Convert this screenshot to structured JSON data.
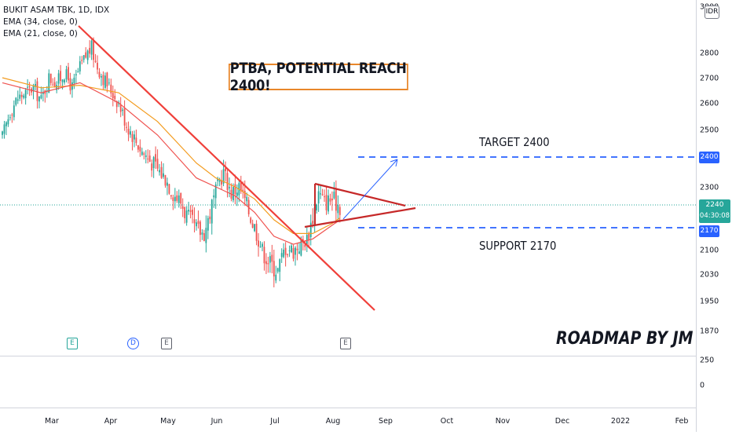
{
  "legend": {
    "symbol": "BUKIT ASAM TBK, 1D, IDX",
    "ema1": "EMA (34, close, 0)",
    "ema2": "EMA (21, close, 0)"
  },
  "annotations": {
    "headline": "PTBA, POTENTIAL REACH 2400!",
    "target_label": "TARGET 2400",
    "support_label": "SUPPORT 2170",
    "signature": "ROADMAP BY JM"
  },
  "currency_badge": "IDR",
  "price_tags": {
    "target": "2400",
    "support": "2170",
    "last_price": "2240",
    "countdown": "04:30:08"
  },
  "event_markers": [
    "E",
    "D",
    "E",
    "E"
  ],
  "colors": {
    "up": "#26a69a",
    "down": "#ef5350",
    "trend_line": "#f0403a",
    "ema34": "#f39c1f",
    "ema21": "#ef5350",
    "level_line": "#2962ff",
    "arrow": "#2962ff",
    "headline_border": "#e8862a"
  },
  "chart_data": {
    "type": "candlestick",
    "y_axis_ticks": [
      "3000",
      "2800",
      "2700",
      "2600",
      "2500",
      "2300",
      "2100",
      "2030",
      "1950",
      "1870"
    ],
    "lower_pane_ticks": [
      "250",
      "0"
    ],
    "x_axis_ticks": [
      "Mar",
      "Apr",
      "May",
      "Jun",
      "Jul",
      "Aug",
      "Sep",
      "Oct",
      "Nov",
      "Dec",
      "2022",
      "Feb"
    ],
    "ylim": [
      1920,
      3000
    ],
    "levels": {
      "target": 2400,
      "support": 2170,
      "last": 2240
    },
    "close_anchors": [
      [
        0,
        2470
      ],
      [
        4,
        2570
      ],
      [
        8,
        2620
      ],
      [
        12,
        2640
      ],
      [
        16,
        2660
      ],
      [
        20,
        2610
      ],
      [
        24,
        2700
      ],
      [
        28,
        2680
      ],
      [
        32,
        2720
      ],
      [
        36,
        2660
      ],
      [
        40,
        2740
      ],
      [
        44,
        2800
      ],
      [
        46,
        2820
      ],
      [
        48,
        2760
      ],
      [
        52,
        2700
      ],
      [
        56,
        2650
      ],
      [
        60,
        2600
      ],
      [
        64,
        2520
      ],
      [
        68,
        2470
      ],
      [
        72,
        2420
      ],
      [
        76,
        2390
      ],
      [
        80,
        2360
      ],
      [
        84,
        2330
      ],
      [
        88,
        2280
      ],
      [
        92,
        2250
      ],
      [
        96,
        2200
      ],
      [
        100,
        2170
      ],
      [
        104,
        2160
      ],
      [
        108,
        2240
      ],
      [
        112,
        2320
      ],
      [
        114,
        2350
      ],
      [
        118,
        2280
      ],
      [
        122,
        2300
      ],
      [
        126,
        2240
      ],
      [
        130,
        2180
      ],
      [
        134,
        2100
      ],
      [
        138,
        2060
      ],
      [
        142,
        2040
      ],
      [
        146,
        2110
      ],
      [
        150,
        2100
      ],
      [
        154,
        2120
      ],
      [
        157,
        2140
      ],
      [
        160,
        2210
      ],
      [
        163,
        2280
      ],
      [
        166,
        2250
      ],
      [
        170,
        2260
      ],
      [
        174,
        2240
      ]
    ],
    "ema34": [
      [
        0,
        2700
      ],
      [
        20,
        2660
      ],
      [
        40,
        2670
      ],
      [
        60,
        2640
      ],
      [
        80,
        2530
      ],
      [
        100,
        2380
      ],
      [
        110,
        2330
      ],
      [
        120,
        2300
      ],
      [
        130,
        2260
      ],
      [
        140,
        2200
      ],
      [
        150,
        2160
      ],
      [
        160,
        2160
      ],
      [
        170,
        2190
      ],
      [
        174,
        2205
      ]
    ],
    "ema21": [
      [
        0,
        2680
      ],
      [
        20,
        2640
      ],
      [
        40,
        2680
      ],
      [
        60,
        2600
      ],
      [
        80,
        2480
      ],
      [
        100,
        2330
      ],
      [
        110,
        2300
      ],
      [
        120,
        2270
      ],
      [
        130,
        2220
      ],
      [
        140,
        2150
      ],
      [
        150,
        2120
      ],
      [
        160,
        2140
      ],
      [
        170,
        2185
      ],
      [
        174,
        2200
      ]
    ]
  }
}
